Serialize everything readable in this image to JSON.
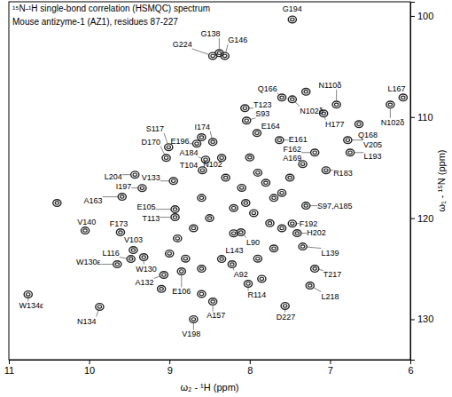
{
  "chart_data": {
    "type": "scatter",
    "title": "¹⁵N-¹H single-bond correlation (HSMQC) spectrum",
    "subtitle": "Mouse antizyme-1 (AZ1), residues 87-227",
    "xlabel": "ω₂ - ¹H (ppm)",
    "ylabel": "ω₁ - ¹⁵N (ppm)",
    "xlim": [
      11,
      6
    ],
    "xticks": [
      11,
      10,
      9,
      8,
      7,
      6
    ],
    "ylim": [
      98.6,
      134
    ],
    "yticks": [
      100,
      110,
      120,
      130
    ],
    "grid": false,
    "marker": "contour",
    "color": "#222222",
    "x": [
      7.47,
      8.38,
      8.31,
      8.46,
      7.6,
      8.06,
      8.04,
      7.47,
      6.92,
      6.09,
      6.25,
      7.08,
      7.91,
      6.64,
      7.63,
      7.19,
      6.78,
      7.34,
      6.75,
      9.04,
      8.66,
      9.01,
      8.46,
      8.55,
      8.59,
      8.35,
      9.43,
      9.34,
      7.05,
      8.95,
      9.59,
      8.93,
      7.3,
      8.93,
      7.47,
      10.05,
      9.61,
      7.41,
      9.45,
      8.11,
      9.48,
      8.35,
      7.34,
      9.65,
      9.32,
      8.22,
      7.19,
      9.07,
      8.85,
      8.02,
      10.76,
      7.25,
      9.87,
      8.46,
      7.56,
      8.7,
      8.0,
      7.9,
      7.8,
      8.1,
      8.05,
      7.95,
      8.2,
      8.3,
      7.7,
      7.6,
      7.5,
      8.6,
      8.5,
      8.7,
      8.9,
      8.2,
      7.75,
      7.6,
      9.0,
      8.6,
      8.8,
      7.9,
      7.7,
      9.1,
      8.6,
      7.3,
      10.4,
      7.85,
      8.6
    ],
    "values": [
      100.35,
      103.68,
      103.95,
      103.95,
      108.07,
      109.12,
      110.35,
      108.25,
      108.77,
      108.07,
      108.77,
      109.65,
      111.58,
      110.7,
      112.28,
      113.51,
      112.28,
      114.65,
      113.51,
      114.04,
      112.63,
      112.98,
      112.46,
      114.21,
      115.26,
      114.04,
      115.7,
      117.02,
      115.26,
      116.32,
      117.89,
      119.12,
      118.77,
      119.91,
      120.53,
      121.23,
      121.4,
      121.49,
      123.16,
      121.4,
      124.04,
      124.04,
      122.81,
      124.56,
      123.86,
      124.56,
      125.0,
      125.61,
      125.26,
      126.49,
      127.54,
      126.67,
      128.77,
      128.25,
      128.68,
      130.0,
      114,
      115.5,
      116.5,
      117,
      118.5,
      119.5,
      119,
      116,
      118,
      117.5,
      116,
      118,
      120,
      121,
      122,
      121.5,
      120.5,
      121,
      123.5,
      125,
      124,
      124,
      123,
      127,
      112,
      107.5,
      118.5,
      126,
      127.5
    ],
    "annotations": [
      {
        "text": "G194",
        "x": 7.47,
        "y": 100.35,
        "text_x": 7.47,
        "text_y": 99.3
      },
      {
        "text": "G138",
        "x": 8.38,
        "y": 103.68,
        "text_x": 8.49,
        "text_y": 101.75
      },
      {
        "text": "G146",
        "x": 8.31,
        "y": 103.95,
        "text_x": 8.15,
        "text_y": 102.37
      },
      {
        "text": "G224",
        "x": 8.46,
        "y": 103.95,
        "text_x": 8.84,
        "text_y": 102.81
      },
      {
        "text": "Q166",
        "x": 7.6,
        "y": 108.07,
        "text_x": 7.78,
        "text_y": 107.19
      },
      {
        "text": "T123",
        "x": 8.06,
        "y": 109.12,
        "text_x": 7.84,
        "text_y": 108.77
      },
      {
        "text": "S93",
        "x": 8.04,
        "y": 110.35,
        "text_x": 7.84,
        "text_y": 109.65
      },
      {
        "text": "N102δ",
        "x": 7.47,
        "y": 108.25,
        "text_x": 7.23,
        "text_y": 109.39
      },
      {
        "text": "N110δ",
        "x": 6.92,
        "y": 108.77,
        "text_x": 7.0,
        "text_y": 106.84
      },
      {
        "text": "L167",
        "x": 6.09,
        "y": 108.07,
        "text_x": 6.17,
        "text_y": 107.19
      },
      {
        "text": "N102δ",
        "x": 6.25,
        "y": 108.77,
        "text_x": 6.22,
        "text_y": 110.53
      },
      {
        "text": "H177",
        "x": 7.08,
        "y": 109.65,
        "text_x": 6.94,
        "text_y": 110.7
      },
      {
        "text": "E164",
        "x": 7.91,
        "y": 111.58,
        "text_x": 7.74,
        "text_y": 110.88
      },
      {
        "text": "Q168",
        "x": 6.64,
        "y": 110.7,
        "text_x": 6.53,
        "text_y": 111.75
      },
      {
        "text": "E161",
        "x": 7.63,
        "y": 112.28,
        "text_x": 7.4,
        "text_y": 112.19
      },
      {
        "text": "F162",
        "x": 7.19,
        "y": 113.51,
        "text_x": 7.47,
        "text_y": 113.16
      },
      {
        "text": "V205",
        "x": 6.78,
        "y": 112.28,
        "text_x": 6.47,
        "text_y": 112.72
      },
      {
        "text": "A169",
        "x": 7.34,
        "y": 114.65,
        "text_x": 7.47,
        "text_y": 114.04
      },
      {
        "text": "L193",
        "x": 6.75,
        "y": 113.51,
        "text_x": 6.47,
        "text_y": 113.86
      },
      {
        "text": "D170",
        "x": 9.04,
        "y": 114.04,
        "text_x": 9.23,
        "text_y": 112.46
      },
      {
        "text": "E196",
        "x": 8.66,
        "y": 112.63,
        "text_x": 8.87,
        "text_y": 112.37
      },
      {
        "text": "S117",
        "x": 9.01,
        "y": 112.98,
        "text_x": 9.18,
        "text_y": 111.14
      },
      {
        "text": "I174",
        "x": 8.46,
        "y": 112.46,
        "text_x": 8.59,
        "text_y": 110.96
      },
      {
        "text": "A184",
        "x": 8.55,
        "y": 114.21,
        "text_x": 8.76,
        "text_y": 113.51
      },
      {
        "text": "T104",
        "x": 8.59,
        "y": 115.26,
        "text_x": 8.76,
        "text_y": 114.74
      },
      {
        "text": "N102",
        "x": 8.35,
        "y": 114.04,
        "text_x": 8.46,
        "text_y": 114.65
      },
      {
        "text": "L204",
        "x": 9.43,
        "y": 115.7,
        "text_x": 9.7,
        "text_y": 115.88
      },
      {
        "text": "I197",
        "x": 9.34,
        "y": 117.02,
        "text_x": 9.57,
        "text_y": 116.84
      },
      {
        "text": "R183",
        "x": 7.05,
        "y": 115.26,
        "text_x": 6.84,
        "text_y": 115.53
      },
      {
        "text": "V133",
        "x": 8.95,
        "y": 116.32,
        "text_x": 9.23,
        "text_y": 115.96
      },
      {
        "text": "A163",
        "x": 9.59,
        "y": 117.89,
        "text_x": 9.95,
        "text_y": 118.25
      },
      {
        "text": "E105",
        "x": 8.93,
        "y": 119.12,
        "text_x": 9.29,
        "text_y": 118.86
      },
      {
        "text": "S97,A185",
        "x": 7.3,
        "y": 118.77,
        "text_x": 6.94,
        "text_y": 118.77
      },
      {
        "text": "T113",
        "x": 8.93,
        "y": 119.91,
        "text_x": 9.23,
        "text_y": 120.0
      },
      {
        "text": "F192",
        "x": 7.47,
        "y": 120.53,
        "text_x": 7.27,
        "text_y": 120.53
      },
      {
        "text": "V140",
        "x": 10.05,
        "y": 121.23,
        "text_x": 10.03,
        "text_y": 120.35
      },
      {
        "text": "F173",
        "x": 9.61,
        "y": 121.4,
        "text_x": 9.63,
        "text_y": 120.53
      },
      {
        "text": "H202",
        "x": 7.41,
        "y": 121.49,
        "text_x": 7.17,
        "text_y": 121.4
      },
      {
        "text": "V103",
        "x": 9.45,
        "y": 123.16,
        "text_x": 9.45,
        "text_y": 122.11
      },
      {
        "text": "L90",
        "x": 8.11,
        "y": 121.4,
        "text_x": 7.96,
        "text_y": 122.37
      },
      {
        "text": "L116",
        "x": 9.48,
        "y": 124.04,
        "text_x": 9.73,
        "text_y": 123.42
      },
      {
        "text": "L143",
        "x": 8.35,
        "y": 124.04,
        "text_x": 8.19,
        "text_y": 123.16
      },
      {
        "text": "L139",
        "x": 7.34,
        "y": 122.81,
        "text_x": 7.0,
        "text_y": 123.42
      },
      {
        "text": "W130ε",
        "x": 9.65,
        "y": 124.56,
        "text_x": 10.01,
        "text_y": 124.3
      },
      {
        "text": "W130",
        "x": 9.32,
        "y": 123.86,
        "text_x": 9.29,
        "text_y": 125.0
      },
      {
        "text": "A92",
        "x": 8.22,
        "y": 124.56,
        "text_x": 8.11,
        "text_y": 125.61
      },
      {
        "text": "T217",
        "x": 7.19,
        "y": 125.0,
        "text_x": 6.97,
        "text_y": 125.61
      },
      {
        "text": "A132",
        "x": 9.07,
        "y": 125.61,
        "text_x": 9.31,
        "text_y": 126.4
      },
      {
        "text": "E106",
        "x": 8.85,
        "y": 125.26,
        "text_x": 8.85,
        "text_y": 127.28
      },
      {
        "text": "R114",
        "x": 8.02,
        "y": 126.49,
        "text_x": 7.91,
        "text_y": 127.63
      },
      {
        "text": "W134ε",
        "x": 10.76,
        "y": 127.54,
        "text_x": 10.72,
        "text_y": 128.68
      },
      {
        "text": "L218",
        "x": 7.25,
        "y": 126.67,
        "text_x": 7.0,
        "text_y": 127.72
      },
      {
        "text": "N134",
        "x": 9.87,
        "y": 128.77,
        "text_x": 10.03,
        "text_y": 130.18
      },
      {
        "text": "A157",
        "x": 8.46,
        "y": 128.25,
        "text_x": 8.42,
        "text_y": 129.65
      },
      {
        "text": "D227",
        "x": 7.56,
        "y": 128.68,
        "text_x": 7.55,
        "text_y": 129.74
      },
      {
        "text": "V198",
        "x": 8.7,
        "y": 130.0,
        "text_x": 8.73,
        "text_y": 131.49
      }
    ]
  }
}
